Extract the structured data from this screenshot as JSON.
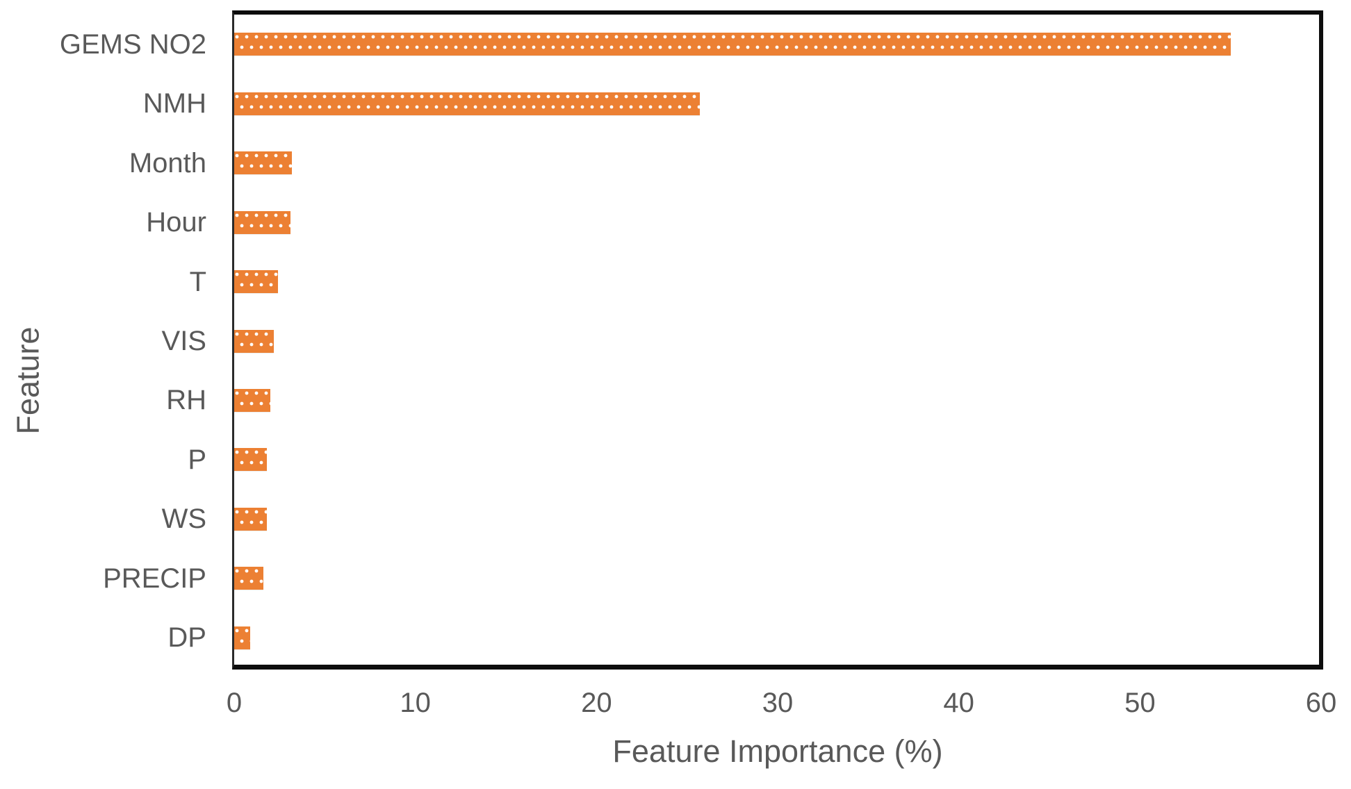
{
  "chart_data": {
    "type": "bar",
    "orientation": "horizontal",
    "title": "",
    "xlabel": "Feature Importance (%)",
    "ylabel": "Feature",
    "categories": [
      "GEMS NO2",
      "NMH",
      "Month",
      "Hour",
      "T",
      "VIS",
      "RH",
      "P",
      "WS",
      "PRECIP",
      "DP"
    ],
    "values": [
      55.0,
      25.7,
      3.2,
      3.1,
      2.4,
      2.2,
      2.0,
      1.8,
      1.8,
      1.6,
      0.9
    ],
    "xlim": [
      0,
      60
    ],
    "xticks": [
      0,
      10,
      20,
      30,
      40,
      50,
      60
    ],
    "grid": false,
    "legend": "none",
    "bar_color": "#EC8033",
    "bar_pattern": "white-dot-grid",
    "text_color": "#595959",
    "frame_color": "#0D0D0D"
  }
}
